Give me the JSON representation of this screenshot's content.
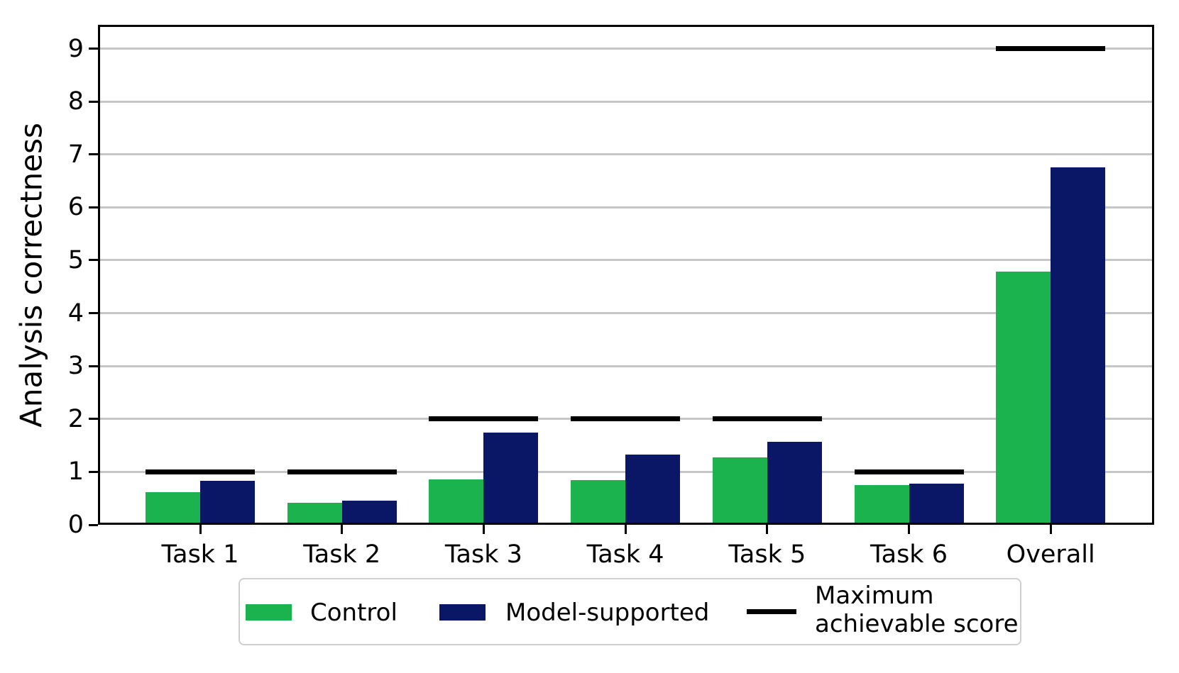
{
  "chart_data": {
    "type": "bar",
    "title": "",
    "xlabel": "",
    "ylabel": "Analysis correctness",
    "categories": [
      "Task 1",
      "Task 2",
      "Task 3",
      "Task 4",
      "Task 5",
      "Task 6",
      "Overall"
    ],
    "series": [
      {
        "name": "Control",
        "color": "#1ab34d",
        "values": [
          0.62,
          0.42,
          0.86,
          0.84,
          1.28,
          0.75,
          4.78
        ]
      },
      {
        "name": "Model-supported",
        "color": "#0a1766",
        "values": [
          0.83,
          0.46,
          1.74,
          1.33,
          1.57,
          0.78,
          6.75
        ]
      }
    ],
    "max_line_series": {
      "name": "Maximum achievable score",
      "color": "#000000",
      "values": [
        1,
        1,
        2,
        2,
        2,
        1,
        9
      ]
    },
    "yticks": [
      0,
      1,
      2,
      3,
      4,
      5,
      6,
      7,
      8,
      9
    ],
    "ylim": [
      0,
      9.45
    ],
    "grid": true,
    "grid_color": "#c6c6c6",
    "legend_position": "bottom"
  },
  "legend": {
    "control_label": "Control",
    "model_label": "Model-supported",
    "max_label_line1": "Maximum",
    "max_label_line2": "achievable score"
  }
}
